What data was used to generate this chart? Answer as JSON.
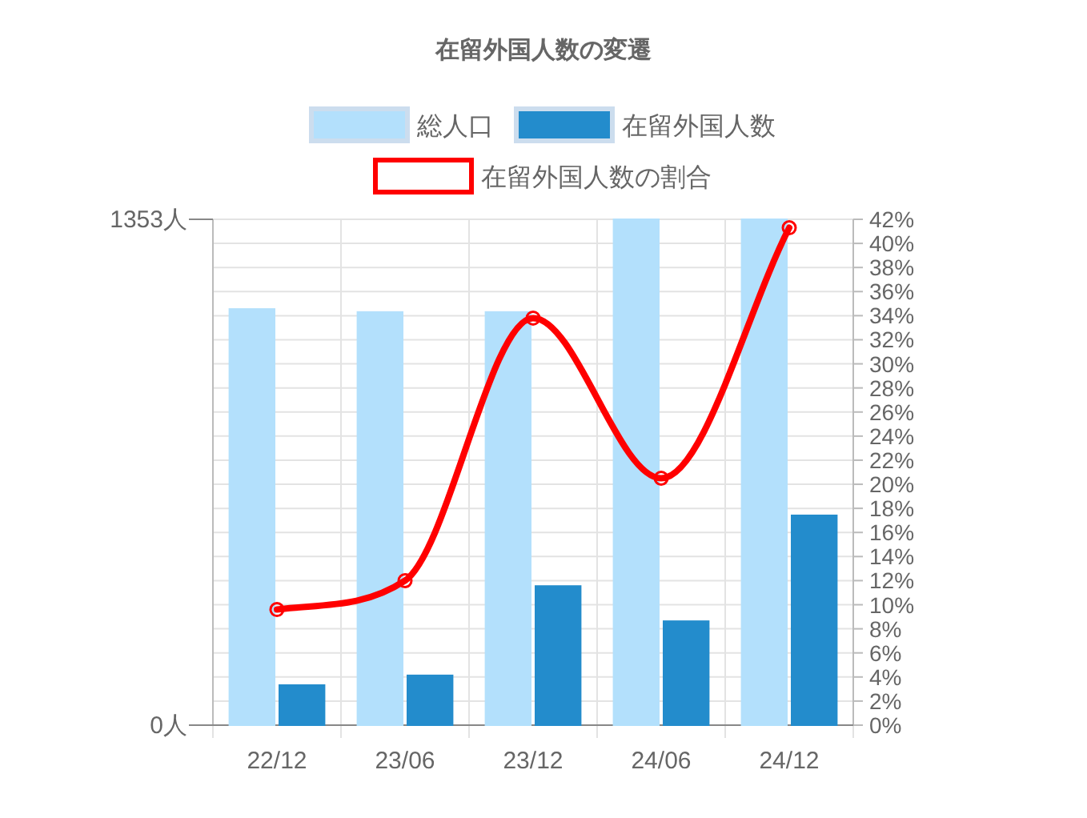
{
  "chart_data": {
    "type": "bar",
    "title": "在留外国人数の変遷",
    "categories": [
      "22/12",
      "23/06",
      "23/12",
      "24/06",
      "24/12"
    ],
    "series": [
      {
        "name": "総人口",
        "color": "#b3e0fc",
        "values": [
          1113,
          1105,
          1105,
          1353,
          1353
        ]
      },
      {
        "name": "在留外国人数",
        "color": "#238ccc",
        "values": [
          107,
          133,
          372,
          278,
          561
        ]
      },
      {
        "name": "在留外国人数の割合",
        "type": "line",
        "axis": "y2",
        "color": "#ff0000",
        "values": [
          9.6,
          12.0,
          33.8,
          20.5,
          41.3
        ]
      }
    ],
    "ylim": [
      0,
      1353
    ],
    "yticks": [
      {
        "value": 0,
        "label": "0人"
      },
      {
        "value": 1353,
        "label": "1353人"
      }
    ],
    "y2lim": [
      0,
      42
    ],
    "y2ticks": [
      {
        "value": 0,
        "label": "0%"
      },
      {
        "value": 2,
        "label": "2%"
      },
      {
        "value": 4,
        "label": "4%"
      },
      {
        "value": 6,
        "label": "6%"
      },
      {
        "value": 8,
        "label": "8%"
      },
      {
        "value": 10,
        "label": "10%"
      },
      {
        "value": 12,
        "label": "12%"
      },
      {
        "value": 14,
        "label": "14%"
      },
      {
        "value": 16,
        "label": "16%"
      },
      {
        "value": 18,
        "label": "18%"
      },
      {
        "value": 20,
        "label": "20%"
      },
      {
        "value": 22,
        "label": "22%"
      },
      {
        "value": 24,
        "label": "24%"
      },
      {
        "value": 26,
        "label": "26%"
      },
      {
        "value": 28,
        "label": "28%"
      },
      {
        "value": 30,
        "label": "30%"
      },
      {
        "value": 32,
        "label": "32%"
      },
      {
        "value": 34,
        "label": "34%"
      },
      {
        "value": 36,
        "label": "36%"
      },
      {
        "value": 38,
        "label": "38%"
      },
      {
        "value": 40,
        "label": "40%"
      },
      {
        "value": 42,
        "label": "42%"
      }
    ],
    "grid": true,
    "legend": "top",
    "marker": "circle"
  }
}
